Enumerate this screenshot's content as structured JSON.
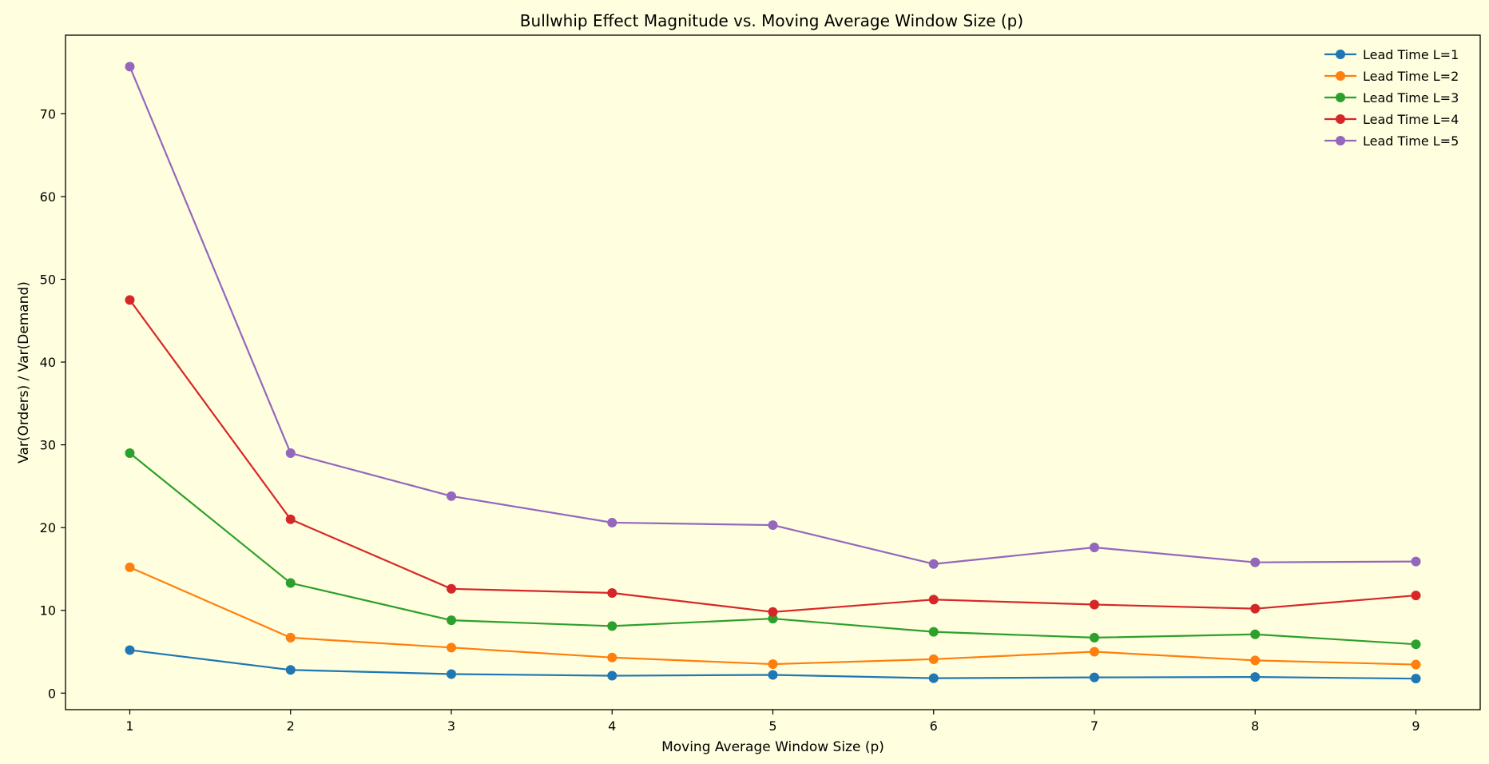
{
  "chart_data": {
    "type": "line",
    "title": "Bullwhip Effect Magnitude vs. Moving Average Window Size (p)",
    "xlabel": "Moving Average Window Size (p)",
    "ylabel": "Var(Orders) / Var(Demand)",
    "x": [
      1,
      2,
      3,
      4,
      5,
      6,
      7,
      8,
      9
    ],
    "xlim": [
      0.6,
      9.4
    ],
    "ylim": [
      -2,
      79.5
    ],
    "xticks": [
      1,
      2,
      3,
      4,
      5,
      6,
      7,
      8,
      9
    ],
    "yticks": [
      0,
      10,
      20,
      30,
      40,
      50,
      60,
      70
    ],
    "grid": false,
    "legend_position": "top-right",
    "series": [
      {
        "name": "Lead Time L=1",
        "color": "#1f77b4",
        "values": [
          5.2,
          2.8,
          2.3,
          2.1,
          2.2,
          1.8,
          1.9,
          1.95,
          1.75
        ]
      },
      {
        "name": "Lead Time L=2",
        "color": "#ff7f0e",
        "values": [
          15.2,
          6.7,
          5.5,
          4.3,
          3.5,
          4.1,
          5.0,
          3.95,
          3.45
        ]
      },
      {
        "name": "Lead Time L=3",
        "color": "#2ca02c",
        "values": [
          29.0,
          13.3,
          8.8,
          8.1,
          9.0,
          7.4,
          6.7,
          7.1,
          5.9
        ]
      },
      {
        "name": "Lead Time L=4",
        "color": "#d62728",
        "values": [
          47.5,
          21.0,
          12.6,
          12.1,
          9.8,
          11.3,
          10.7,
          10.2,
          11.8
        ]
      },
      {
        "name": "Lead Time L=5",
        "color": "#9467bd",
        "values": [
          75.7,
          29.0,
          23.8,
          20.6,
          20.3,
          15.6,
          17.6,
          15.8,
          15.9
        ]
      }
    ]
  }
}
